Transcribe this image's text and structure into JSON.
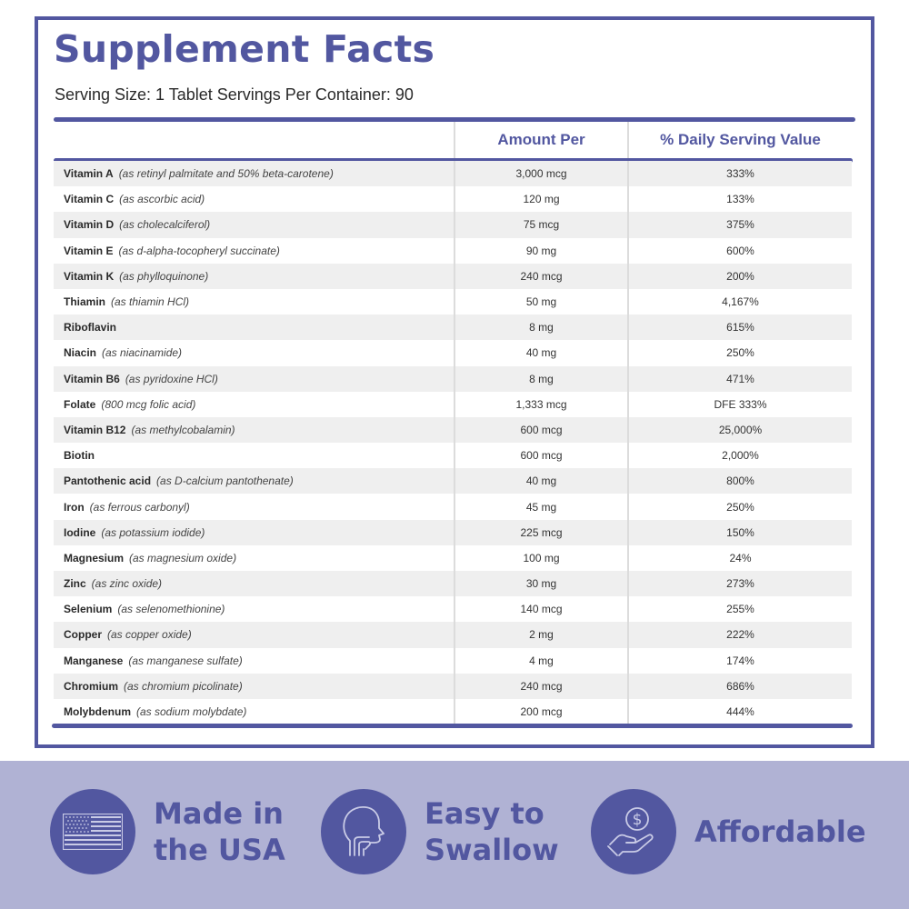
{
  "header": {
    "title": "Supplement Facts",
    "serving_info": "Serving Size: 1 Tablet Servings Per Container: 90"
  },
  "table": {
    "columns": [
      "",
      "Amount Per",
      "% Daily Serving Value"
    ],
    "rows": [
      {
        "name": "Vitamin A",
        "source": "(as retinyl palmitate and 50% beta-carotene)",
        "amount": "3,000 mcg",
        "dv": "333%"
      },
      {
        "name": "Vitamin C",
        "source": "(as ascorbic acid)",
        "amount": "120 mg",
        "dv": "133%"
      },
      {
        "name": "Vitamin D",
        "source": "(as cholecalciferol)",
        "amount": "75 mcg",
        "dv": "375%"
      },
      {
        "name": "Vitamin E",
        "source": "(as d-alpha-tocopheryl succinate)",
        "amount": "90 mg",
        "dv": "600%"
      },
      {
        "name": "Vitamin K",
        "source": "(as phylloquinone)",
        "amount": "240 mcg",
        "dv": "200%"
      },
      {
        "name": "Thiamin",
        "source": "(as thiamin HCl)",
        "amount": "50 mg",
        "dv": "4,167%"
      },
      {
        "name": "Riboflavin",
        "source": "",
        "amount": "8 mg",
        "dv": "615%"
      },
      {
        "name": "Niacin",
        "source": "(as niacinamide)",
        "amount": "40 mg",
        "dv": "250%"
      },
      {
        "name": "Vitamin B6",
        "source": "(as pyridoxine HCl)",
        "amount": "8 mg",
        "dv": "471%"
      },
      {
        "name": "Folate",
        "source": "(800 mcg folic acid)",
        "amount": "1,333 mcg",
        "dv": "DFE 333%"
      },
      {
        "name": "Vitamin B12",
        "source": "(as methylcobalamin)",
        "amount": "600 mcg",
        "dv": "25,000%"
      },
      {
        "name": "Biotin",
        "source": "",
        "amount": "600 mcg",
        "dv": "2,000%"
      },
      {
        "name": "Pantothenic acid",
        "source": "(as D-calcium pantothenate)",
        "amount": "40 mg",
        "dv": "800%"
      },
      {
        "name": "Iron",
        "source": "(as ferrous carbonyl)",
        "amount": "45 mg",
        "dv": "250%"
      },
      {
        "name": "Iodine",
        "source": "(as potassium iodide)",
        "amount": "225 mcg",
        "dv": "150%"
      },
      {
        "name": "Magnesium",
        "source": "(as magnesium oxide)",
        "amount": "100 mg",
        "dv": "24%"
      },
      {
        "name": "Zinc",
        "source": "(as zinc oxide)",
        "amount": "30 mg",
        "dv": "273%"
      },
      {
        "name": "Selenium",
        "source": "(as selenomethionine)",
        "amount": "140 mcg",
        "dv": "255%"
      },
      {
        "name": "Copper",
        "source": "(as copper oxide)",
        "amount": "2 mg",
        "dv": "222%"
      },
      {
        "name": "Manganese",
        "source": "(as manganese sulfate)",
        "amount": "4 mg",
        "dv": "174%"
      },
      {
        "name": "Chromium",
        "source": "(as chromium picolinate)",
        "amount": "240 mcg",
        "dv": "686%"
      },
      {
        "name": "Molybdenum",
        "source": "(as sodium molybdate)",
        "amount": "200 mcg",
        "dv": "444%"
      }
    ]
  },
  "features": [
    {
      "label": "Made in\nthe USA",
      "icon": "us-flag-icon"
    },
    {
      "label": "Easy to\nSwallow",
      "icon": "head-throat-icon"
    },
    {
      "label": "Affordable",
      "icon": "hand-coin-dollar-icon"
    }
  ],
  "colors": {
    "accent": "#5257a0",
    "banner_bg": "#b0b2d4",
    "row_alt": "#efefef"
  }
}
